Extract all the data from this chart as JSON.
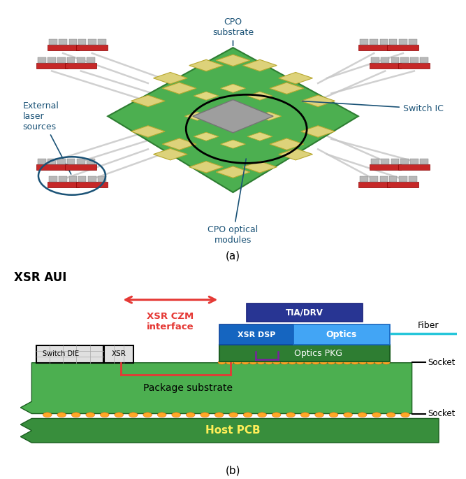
{
  "fig_width": 6.67,
  "fig_height": 6.85,
  "bg_color": "#ffffff",
  "panel_a": {
    "bg_color": "#d4d8dc",
    "ann_color": "#1a5276",
    "label": "(a)"
  },
  "panel_b": {
    "label": "(b)",
    "colors": {
      "package_substrate": "#4caf50",
      "host_pcb": "#388e3c",
      "optics_pkg": "#2e7d32",
      "xsr_dsp": "#1565c0",
      "optics_block": "#42a5f5",
      "tia_drv": "#283593",
      "solder_bump": "#ffa726",
      "red_arrow": "#e53935",
      "purple_line": "#7b1fa2",
      "red_bracket": "#e53935",
      "fiber": "#26c6da"
    },
    "xsr_aui_label": "XSR AUI",
    "czm_label": "XSR CZM\ninterface",
    "fiber_label": "Fiber",
    "socket_label": "Socket",
    "socket2_label": "Socket",
    "pkg_substrate_label": "Package substrate",
    "host_pcb_label": "Host PCB",
    "optics_pkg_label": "Optics PKG",
    "xsr_dsp_label": "XSR DSP",
    "optics_label": "Optics",
    "tia_drv_label": "TIA/DRV",
    "switch_die_label": "Switch DIE",
    "xsr_label": "XSR"
  }
}
